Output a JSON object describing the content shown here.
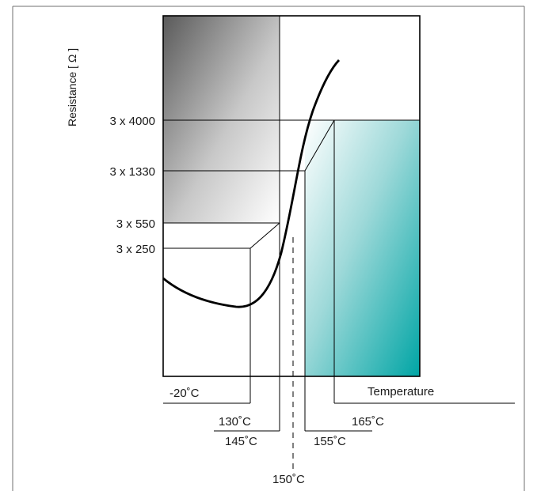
{
  "diagram": {
    "y_axis_label": "Resistance [ Ω ]",
    "x_axis_label": "Temperature",
    "resistance_labels": {
      "r4000": "3 x 4000",
      "r1330": "3 x 1330",
      "r550": "3 x 550",
      "r250": "3 x 250"
    },
    "temperature_labels": {
      "t_minus20": "-20˚C",
      "t130": "130˚C",
      "t145": "145˚C",
      "t150": "150˚C",
      "t155": "155˚C",
      "t165": "165˚C"
    },
    "colors": {
      "gray_dark": "#5a5a5a",
      "teal": "#00a5a5",
      "line": "#000000",
      "frame": "#6f6f6f"
    }
  }
}
